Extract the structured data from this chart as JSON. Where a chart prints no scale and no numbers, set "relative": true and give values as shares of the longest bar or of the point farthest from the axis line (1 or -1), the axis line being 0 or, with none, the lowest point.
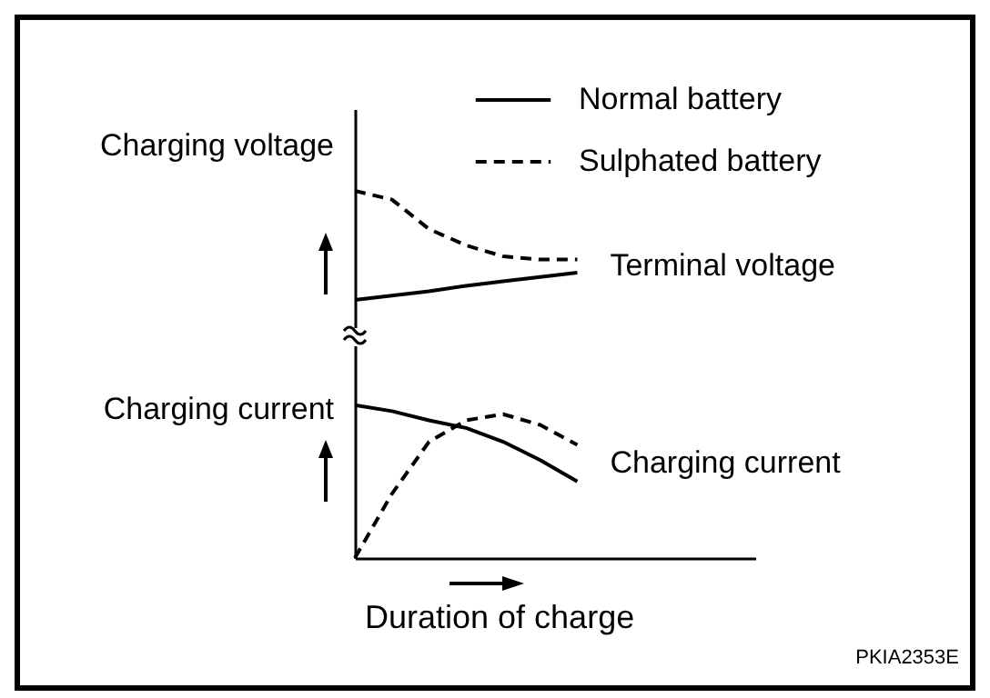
{
  "chart_data": [
    {
      "type": "line",
      "relative": true,
      "ylabel": "Charging voltage",
      "categories": [
        null,
        null,
        null,
        null,
        null,
        null,
        null
      ],
      "series": [
        {
          "name": "Normal battery",
          "color": "#000000",
          "line_style": "solid",
          "values": [
            0,
            0.04,
            0.08,
            0.13,
            0.17,
            0.21,
            0.25
          ]
        },
        {
          "name": "Sulphated battery",
          "color": "#000000",
          "line_style": "dashed",
          "values": [
            1,
            0.92,
            0.65,
            0.5,
            0.4,
            0.37,
            0.37
          ]
        }
      ],
      "legend": "top right",
      "tick_labels": false,
      "annotations": [
        "Terminal voltage"
      ]
    },
    {
      "type": "line",
      "relative": true,
      "ylabel": "Charging current",
      "xlabel": "Duration of charge",
      "categories": [
        null,
        null,
        null,
        null,
        null,
        null,
        null
      ],
      "series": [
        {
          "color": "#000000",
          "line_style": "solid",
          "values": [
            1,
            0.96,
            0.9,
            0.85,
            0.76,
            0.64,
            0.5
          ]
        },
        {
          "color": "#000000",
          "line_style": "dashed",
          "values": [
            0,
            0.42,
            0.76,
            0.9,
            0.94,
            0.87,
            0.74
          ]
        }
      ],
      "tick_labels": false,
      "annotations": [
        "Charging current",
        "PKIA2353E"
      ]
    }
  ]
}
